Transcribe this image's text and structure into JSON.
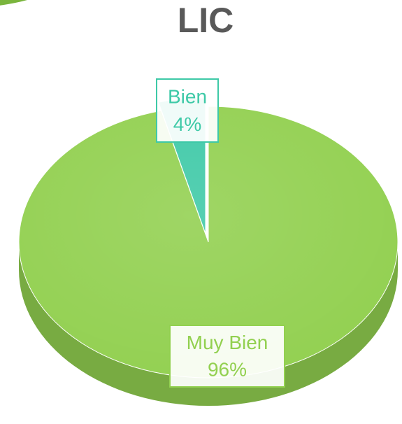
{
  "chart_data": {
    "type": "pie",
    "title": "LIC",
    "categories": [
      "Bien",
      "Muy Bien"
    ],
    "values": [
      4,
      96
    ],
    "value_labels": [
      "4%",
      "96%"
    ],
    "colors": [
      "#3ec9a7",
      "#92d050"
    ]
  }
}
